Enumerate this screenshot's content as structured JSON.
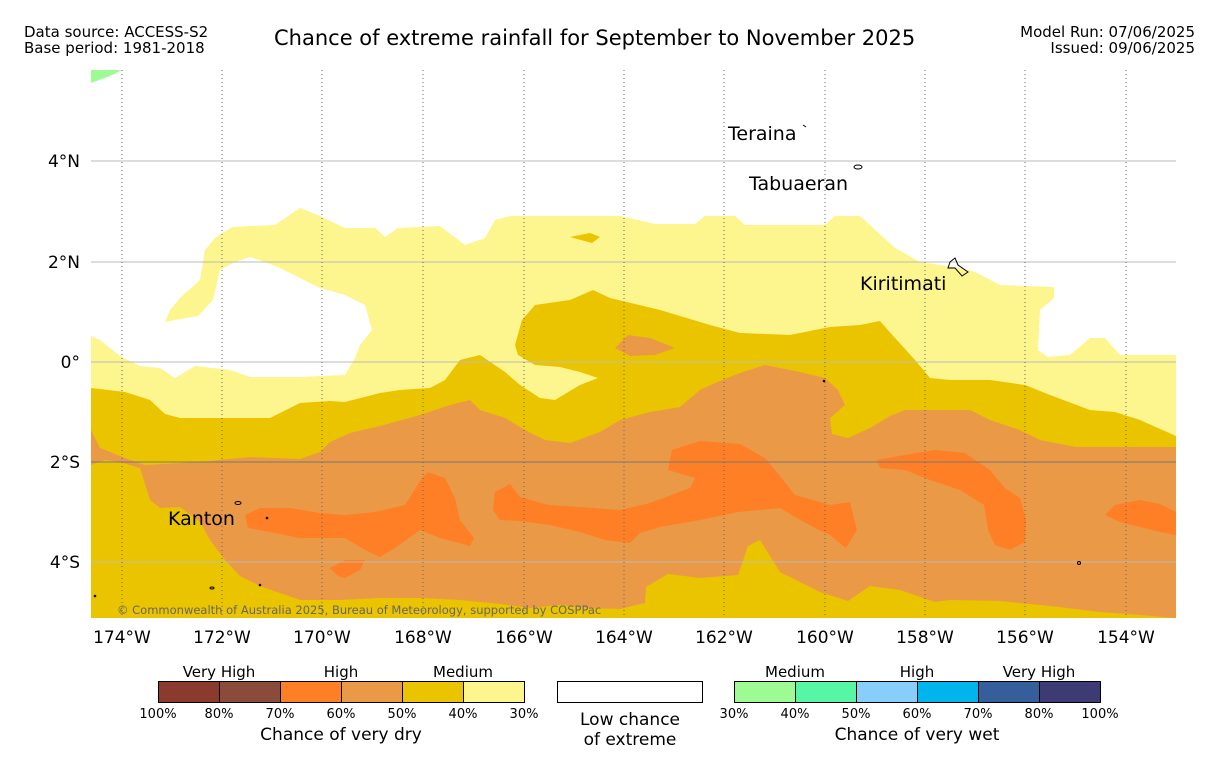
{
  "header": {
    "data_source": "Data source: ACCESS-S2",
    "base_period": "Base period: 1981-2018",
    "title": "Chance of extreme rainfall for September to November 2025",
    "model_run": "Model Run: 07/06/2025",
    "issued": "Issued: 09/06/2025"
  },
  "map": {
    "lat_labels": [
      "4°N",
      "2°N",
      "0°",
      "2°S",
      "4°S"
    ],
    "lon_labels": [
      "174°W",
      "172°W",
      "170°W",
      "168°W",
      "166°W",
      "164°W",
      "162°W",
      "160°W",
      "158°W",
      "156°W",
      "154°W"
    ],
    "places": [
      "Teraina",
      "Tabuaeran",
      "Kiritimati",
      "Kanton"
    ],
    "copyright": "© Commonwealth of Australia 2025, Bureau of Meteorology, supported by COSPPac",
    "colors": {
      "medium_dry": "#fdf58e",
      "medium_dry2": "#ebc400",
      "high_dry": "#ea9a46",
      "high_dry2": "#fe7f26",
      "wet_medium": "#9efb94"
    }
  },
  "legend": {
    "dry": {
      "categories": [
        "Very High",
        "High",
        "Medium"
      ],
      "colors": [
        "#8b3a2e",
        "#8b4b3a",
        "#fe7f26",
        "#ea9a46",
        "#ebc400",
        "#fdf58e"
      ],
      "ticks": [
        "100%",
        "80%",
        "70%",
        "60%",
        "50%",
        "40%",
        "30%"
      ],
      "title": "Chance of very dry"
    },
    "low": {
      "line1": "Low chance",
      "line2": "of extreme"
    },
    "wet": {
      "categories": [
        "Medium",
        "High",
        "Very High"
      ],
      "colors": [
        "#9efb94",
        "#56f6a4",
        "#87cefa",
        "#00b4ec",
        "#345f9a",
        "#3e3a74"
      ],
      "ticks": [
        "30%",
        "40%",
        "50%",
        "60%",
        "70%",
        "80%",
        "100%"
      ],
      "title": "Chance of very wet"
    }
  }
}
